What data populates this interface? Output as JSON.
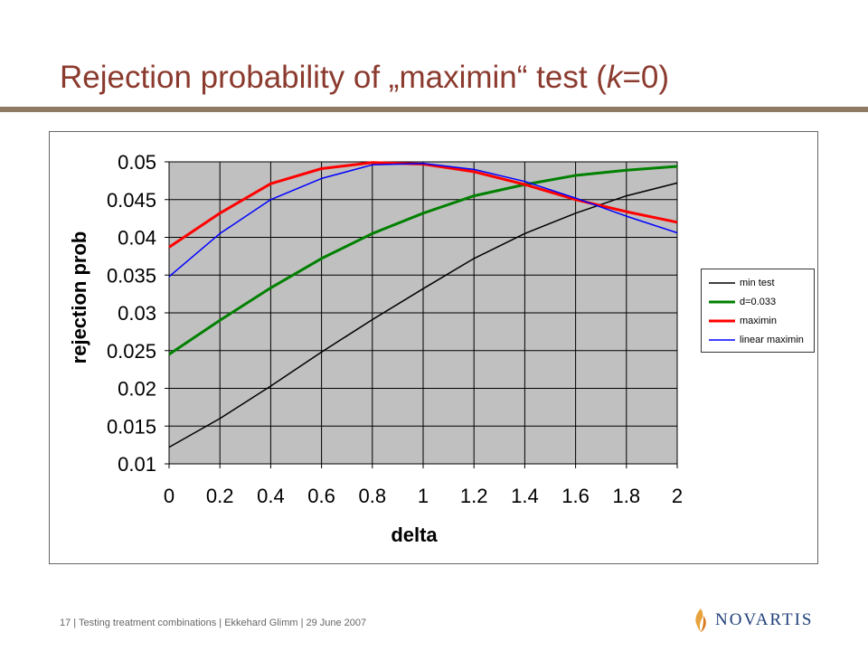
{
  "slide": {
    "title_pre": "Rejection probability of „maximin“ test (",
    "title_var": "k",
    "title_post": "=0)",
    "footer": "17 | Testing treatment combinations | Ekkehard Glimm | 29 June 2007",
    "logo_text": "NOVARTIS"
  },
  "colors": {
    "title": "#8B3A2E",
    "rule": "#8F7A64",
    "plot_background": "#C0C0C0",
    "logo_blue": "#1F3F7A",
    "logo_flame": "#E8A33C"
  },
  "chart_data": {
    "type": "line",
    "title": "",
    "xlabel": "delta",
    "ylabel": "rejection prob",
    "xlim": [
      0,
      2
    ],
    "ylim": [
      0.01,
      0.05
    ],
    "xticks": [
      "0",
      "0.2",
      "0.4",
      "0.6",
      "0.8",
      "1",
      "1.2",
      "1.4",
      "1.6",
      "1.8",
      "2"
    ],
    "yticks": [
      "0.01",
      "0.015",
      "0.02",
      "0.025",
      "0.03",
      "0.035",
      "0.04",
      "0.045",
      "0.05"
    ],
    "grid": true,
    "legend_position": "right",
    "x": [
      0,
      0.2,
      0.4,
      0.6,
      0.8,
      1.0,
      1.2,
      1.4,
      1.6,
      1.8,
      2.0
    ],
    "series": [
      {
        "name": "min test",
        "color": "#000000",
        "values": [
          0.0122,
          0.016,
          0.0203,
          0.0248,
          0.0291,
          0.0332,
          0.0372,
          0.0405,
          0.0432,
          0.0455,
          0.0472
        ]
      },
      {
        "name": "d=0.033",
        "color": "#008000",
        "values": [
          0.0245,
          0.029,
          0.0333,
          0.0372,
          0.0405,
          0.0432,
          0.0455,
          0.047,
          0.0482,
          0.0489,
          0.0494
        ]
      },
      {
        "name": "maximin",
        "color": "#FF0000",
        "values": [
          0.0387,
          0.0432,
          0.0471,
          0.0491,
          0.0499,
          0.0497,
          0.0487,
          0.047,
          0.045,
          0.0434,
          0.042
        ]
      },
      {
        "name": "linear maximin",
        "color": "#0000FF",
        "values": [
          0.0348,
          0.0405,
          0.045,
          0.0478,
          0.0496,
          0.0498,
          0.049,
          0.0474,
          0.0452,
          0.0428,
          0.0406
        ]
      }
    ]
  }
}
